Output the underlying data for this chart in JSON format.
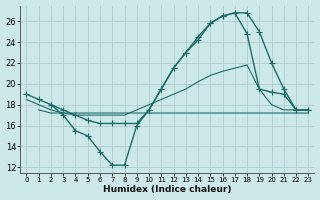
{
  "xlabel": "Humidex (Indice chaleur)",
  "xlim": [
    -0.5,
    23.5
  ],
  "ylim": [
    11.5,
    27.5
  ],
  "yticks": [
    12,
    14,
    16,
    18,
    20,
    22,
    24,
    26
  ],
  "xticks": [
    0,
    1,
    2,
    3,
    4,
    5,
    6,
    7,
    8,
    9,
    10,
    11,
    12,
    13,
    14,
    15,
    16,
    17,
    18,
    19,
    20,
    21,
    22,
    23
  ],
  "bg_color": "#cce8e8",
  "grid_color": "#b0cccc",
  "line_color": "#1a6e6a",
  "lines": [
    {
      "x": [
        0,
        1,
        2,
        3,
        4,
        5,
        6,
        7,
        8,
        9,
        10,
        11,
        12,
        13,
        14,
        15,
        16,
        17,
        18,
        19,
        20,
        21,
        22,
        23
      ],
      "y": [
        19,
        18.5,
        18,
        17,
        15.5,
        15,
        13.5,
        12.2,
        12.2,
        16.0,
        17.5,
        19.5,
        21.5,
        23.0,
        24.5,
        25.8,
        26.5,
        26.8,
        26.8,
        25.0,
        22.0,
        19.5,
        17.5,
        17.5
      ],
      "marker": "+",
      "markersize": 4,
      "lw": 1.0
    },
    {
      "x": [
        1,
        2,
        3,
        4,
        5,
        6,
        7,
        8,
        9,
        10,
        11,
        12,
        13,
        14,
        15,
        16,
        17,
        18,
        19,
        20,
        21,
        22,
        23
      ],
      "y": [
        17.5,
        17.2,
        17.2,
        17.2,
        17.2,
        17.2,
        17.2,
        17.2,
        17.2,
        17.2,
        17.2,
        17.2,
        17.2,
        17.2,
        17.2,
        17.2,
        17.2,
        17.2,
        17.2,
        17.2,
        17.2,
        17.2,
        17.2
      ],
      "marker": null,
      "markersize": 0,
      "lw": 0.8
    },
    {
      "x": [
        0,
        1,
        2,
        3,
        4,
        5,
        6,
        7,
        8,
        9,
        10,
        11,
        12,
        13,
        14,
        15,
        16,
        17,
        18,
        19,
        20,
        21,
        22,
        23
      ],
      "y": [
        18.5,
        18.0,
        17.5,
        17.2,
        17.0,
        17.0,
        17.0,
        17.0,
        17.0,
        17.5,
        18.0,
        18.5,
        19.0,
        19.5,
        20.2,
        20.8,
        21.2,
        21.5,
        21.8,
        19.5,
        18.0,
        17.5,
        17.5,
        17.5
      ],
      "marker": null,
      "markersize": 0,
      "lw": 0.8
    },
    {
      "x": [
        2,
        3,
        4,
        5,
        6,
        7,
        8,
        9,
        10,
        11,
        12,
        13,
        14,
        15,
        16,
        17,
        18,
        19,
        20,
        21,
        22,
        23
      ],
      "y": [
        18.0,
        17.5,
        17.0,
        16.5,
        16.2,
        16.2,
        16.2,
        16.2,
        17.5,
        19.5,
        21.5,
        23.0,
        24.2,
        25.8,
        26.5,
        26.8,
        24.8,
        19.5,
        19.2,
        19.0,
        17.5,
        17.5
      ],
      "marker": "+",
      "markersize": 4,
      "lw": 1.0
    }
  ]
}
